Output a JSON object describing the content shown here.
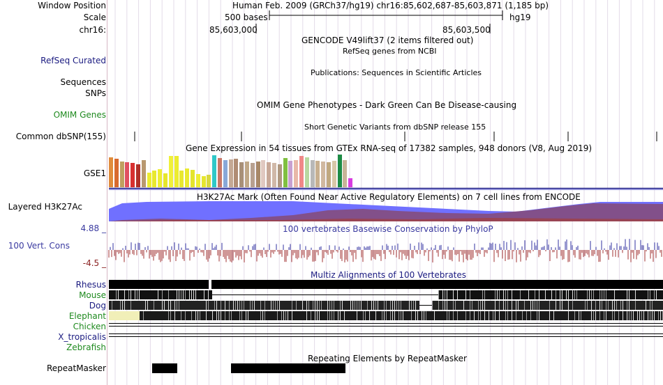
{
  "header": {
    "window_label": "Window Position",
    "window_text": "Human Feb. 2009 (GRCh37/hg19)   chr16:85,602,687-85,603,871 (1,185 bp)",
    "scale_label": "Scale",
    "scale_text": "500 bases",
    "assembly": "hg19",
    "chrom_label": "chr16:",
    "coord_left": "85,603,000",
    "coord_right": "85,603,500"
  },
  "tracks": {
    "gencode_title": "GENCODE V49lift37 (2 items filtered out)",
    "refseq_label": "RefSeq Curated",
    "refseq_title": "RefSeq genes from NCBI",
    "publications_title": "Publications: Sequences in Scientific Articles",
    "sequences_label": "Sequences",
    "snps_label": "SNPs",
    "omim_label": "OMIM Genes",
    "omim_title": "OMIM Gene Phenotypes - Dark Green Can Be Disease-causing",
    "dbsnp_title": "Short Genetic Variants from dbSNP release 155",
    "dbsnp_label": "Common dbSNP(155)",
    "gtex_title": "Gene Expression in 54 tissues from GTEx RNA-seq of 17382 samples, 948 donors (V8, Aug 2019)",
    "gtex_label": "GSE1",
    "h3k27_title": "H3K27Ac Mark (Often Found Near Active Regulatory Elements) on 7 cell lines from ENCODE",
    "h3k27_label": "Layered H3K27Ac",
    "cons_title": "100 vertebrates Basewise Conservation by PhyloP",
    "cons_label": "100 Vert. Cons",
    "cons_max": "4.88 _",
    "cons_min": "-4.5 _",
    "multiz_title": "Multiz Alignments of 100 Vertebrates",
    "species": [
      "Rhesus",
      "Mouse",
      "Dog",
      "Elephant",
      "Chicken",
      "X_tropicalis",
      "Zebrafish"
    ],
    "repeat_title": "Repeating Elements by RepeatMasker",
    "repeat_label": "RepeatMasker"
  },
  "gtex_tissues": [
    {
      "color": "#e08c3c",
      "value": 0.92
    },
    {
      "color": "#d86a2e",
      "value": 0.88
    },
    {
      "color": "#c0a060",
      "value": 0.78
    },
    {
      "color": "#e05060",
      "value": 0.76
    },
    {
      "color": "#d83030",
      "value": 0.74
    },
    {
      "color": "#b03028",
      "value": 0.7
    },
    {
      "color": "#b89870",
      "value": 0.84
    },
    {
      "color": "#ecec30",
      "value": 0.44
    },
    {
      "color": "#e8e82e",
      "value": 0.5
    },
    {
      "color": "#eeee34",
      "value": 0.56
    },
    {
      "color": "#e6e62c",
      "value": 0.42
    },
    {
      "color": "#f0f03a",
      "value": 0.96
    },
    {
      "color": "#ecec30",
      "value": 0.96
    },
    {
      "color": "#e8e830",
      "value": 0.52
    },
    {
      "color": "#eaea30",
      "value": 0.58
    },
    {
      "color": "#e4e42c",
      "value": 0.54
    },
    {
      "color": "#eeee34",
      "value": 0.4
    },
    {
      "color": "#e6e62e",
      "value": 0.34
    },
    {
      "color": "#d8d840",
      "value": 0.38
    },
    {
      "color": "#30c8c8",
      "value": 0.98
    },
    {
      "color": "#c87868",
      "value": 0.9
    },
    {
      "color": "#88a8d8",
      "value": 0.82
    },
    {
      "color": "#c4a894",
      "value": 0.86
    },
    {
      "color": "#b08c74",
      "value": 0.88
    },
    {
      "color": "#a89078",
      "value": 0.76
    },
    {
      "color": "#c0a888",
      "value": 0.78
    },
    {
      "color": "#b8a090",
      "value": 0.74
    },
    {
      "color": "#a88868",
      "value": 0.78
    },
    {
      "color": "#e0c8c0",
      "value": 0.82
    },
    {
      "color": "#c8a898",
      "value": 0.76
    },
    {
      "color": "#d0b8a8",
      "value": 0.74
    },
    {
      "color": "#b09880",
      "value": 0.7
    },
    {
      "color": "#80c040",
      "value": 0.9
    },
    {
      "color": "#c8a0d0",
      "value": 0.8
    },
    {
      "color": "#e8b8a8",
      "value": 0.82
    },
    {
      "color": "#f08888",
      "value": 0.96
    },
    {
      "color": "#b8d8a0",
      "value": 0.92
    },
    {
      "color": "#b8b8b8",
      "value": 0.84
    },
    {
      "color": "#c8b090",
      "value": 0.8
    },
    {
      "color": "#d0b8a0",
      "value": 0.78
    },
    {
      "color": "#c0a880",
      "value": 0.76
    },
    {
      "color": "#d8c8a8",
      "value": 0.8
    },
    {
      "color": "#1e8c46",
      "value": 1.0
    },
    {
      "color": "#c8b498",
      "value": 0.84
    },
    {
      "color": "#d83ce0",
      "value": 0.28
    }
  ]
}
